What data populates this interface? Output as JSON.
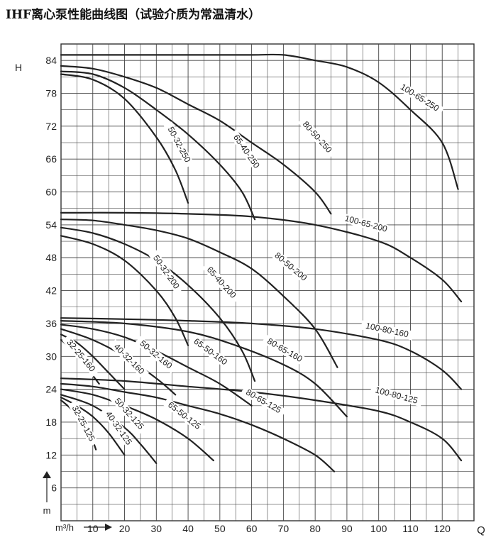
{
  "title": "IHF离心泵性能曲线图（试验介质为常温清水）",
  "chart_data": {
    "type": "line",
    "title": "IHF离心泵性能曲线图（试验介质为常温清水）",
    "xlabel": "Q",
    "ylabel": "H",
    "x_unit": "m³/h",
    "y_unit": "m",
    "xlim": [
      0,
      130
    ],
    "ylim": [
      0,
      87
    ],
    "x_ticks": [
      10,
      20,
      30,
      40,
      50,
      60,
      70,
      80,
      90,
      100,
      110,
      120
    ],
    "y_ticks": [
      6,
      12,
      18,
      24,
      30,
      36,
      42,
      48,
      54,
      60,
      66,
      72,
      78,
      84
    ],
    "grid": true,
    "series": [
      {
        "name": "100-65-250",
        "points": [
          [
            0,
            85
          ],
          [
            20,
            85
          ],
          [
            40,
            85
          ],
          [
            60,
            85
          ],
          [
            70,
            85
          ],
          [
            80,
            84
          ],
          [
            90,
            82.8
          ],
          [
            100,
            80
          ],
          [
            110,
            75
          ],
          [
            120,
            69
          ],
          [
            125,
            60.5
          ]
        ]
      },
      {
        "name": "80-50-250",
        "points": [
          [
            0,
            83
          ],
          [
            10,
            82.5
          ],
          [
            20,
            81
          ],
          [
            30,
            79
          ],
          [
            40,
            76
          ],
          [
            50,
            73
          ],
          [
            60,
            69
          ],
          [
            70,
            65
          ],
          [
            80,
            60
          ],
          [
            85,
            56
          ]
        ]
      },
      {
        "name": "65-40-250",
        "points": [
          [
            0,
            82
          ],
          [
            10,
            81.5
          ],
          [
            20,
            79
          ],
          [
            30,
            75
          ],
          [
            40,
            70.5
          ],
          [
            50,
            65
          ],
          [
            57,
            60
          ],
          [
            61,
            55
          ]
        ]
      },
      {
        "name": "50-32-250",
        "points": [
          [
            0,
            81.5
          ],
          [
            10,
            80.5
          ],
          [
            20,
            77
          ],
          [
            30,
            70
          ],
          [
            36,
            64
          ],
          [
            40,
            58
          ]
        ]
      },
      {
        "name": "100-65-200",
        "points": [
          [
            0,
            56.2
          ],
          [
            20,
            56.2
          ],
          [
            40,
            56
          ],
          [
            60,
            55.5
          ],
          [
            80,
            54
          ],
          [
            100,
            51
          ],
          [
            110,
            48
          ],
          [
            120,
            44
          ],
          [
            126,
            40
          ]
        ]
      },
      {
        "name": "80-50-200",
        "points": [
          [
            0,
            55
          ],
          [
            10,
            54.8
          ],
          [
            20,
            54
          ],
          [
            30,
            53
          ],
          [
            40,
            51.5
          ],
          [
            50,
            49
          ],
          [
            60,
            46
          ],
          [
            70,
            41
          ],
          [
            80,
            35
          ],
          [
            87,
            28
          ]
        ]
      },
      {
        "name": "65-40-200",
        "points": [
          [
            0,
            53.5
          ],
          [
            10,
            52.5
          ],
          [
            20,
            50.5
          ],
          [
            30,
            47.5
          ],
          [
            40,
            43
          ],
          [
            50,
            37
          ],
          [
            57,
            31
          ],
          [
            61,
            25.5
          ]
        ]
      },
      {
        "name": "50-32-200",
        "points": [
          [
            0,
            52
          ],
          [
            10,
            50.5
          ],
          [
            20,
            47.5
          ],
          [
            30,
            42
          ],
          [
            36,
            37
          ],
          [
            40,
            32
          ]
        ]
      },
      {
        "name": "100-80-160",
        "points": [
          [
            0,
            37
          ],
          [
            20,
            36.8
          ],
          [
            40,
            36.5
          ],
          [
            60,
            36
          ],
          [
            80,
            35
          ],
          [
            100,
            33
          ],
          [
            110,
            31
          ],
          [
            120,
            27.5
          ],
          [
            126,
            24
          ]
        ]
      },
      {
        "name": "80-65-160",
        "points": [
          [
            0,
            36.5
          ],
          [
            20,
            36
          ],
          [
            40,
            34.5
          ],
          [
            55,
            32
          ],
          [
            70,
            28.5
          ],
          [
            80,
            25
          ],
          [
            90,
            19
          ]
        ]
      },
      {
        "name": "65-50-160",
        "points": [
          [
            0,
            35.8
          ],
          [
            10,
            35
          ],
          [
            20,
            33.5
          ],
          [
            30,
            31
          ],
          [
            40,
            28
          ],
          [
            50,
            25
          ],
          [
            60,
            21
          ]
        ]
      },
      {
        "name": "50-32-160",
        "points": [
          [
            0,
            35
          ],
          [
            10,
            33
          ],
          [
            20,
            30
          ],
          [
            30,
            26
          ],
          [
            36,
            23
          ]
        ]
      },
      {
        "name": "40-32-160",
        "points": [
          [
            0,
            34
          ],
          [
            5,
            32.5
          ],
          [
            10,
            30
          ],
          [
            15,
            27
          ],
          [
            20,
            24
          ]
        ]
      },
      {
        "name": "32-25-160",
        "points": [
          [
            0,
            33
          ],
          [
            4,
            31
          ],
          [
            8,
            28
          ],
          [
            12,
            25
          ]
        ]
      },
      {
        "name": "100-80-125",
        "points": [
          [
            0,
            26
          ],
          [
            20,
            25.5
          ],
          [
            40,
            24.5
          ],
          [
            60,
            23.5
          ],
          [
            80,
            22
          ],
          [
            100,
            20
          ],
          [
            110,
            18
          ],
          [
            120,
            15
          ],
          [
            126,
            11
          ]
        ]
      },
      {
        "name": "80-65-125",
        "points": [
          [
            0,
            25
          ],
          [
            10,
            24.5
          ],
          [
            20,
            23.5
          ],
          [
            30,
            22.5
          ],
          [
            40,
            21
          ],
          [
            50,
            19.5
          ],
          [
            60,
            17.5
          ],
          [
            70,
            15
          ],
          [
            80,
            12
          ],
          [
            86,
            9
          ]
        ]
      },
      {
        "name": "65-50-125",
        "points": [
          [
            0,
            24
          ],
          [
            10,
            23
          ],
          [
            20,
            21
          ],
          [
            30,
            18.5
          ],
          [
            40,
            15
          ],
          [
            48,
            11
          ]
        ]
      },
      {
        "name": "50-32-125",
        "points": [
          [
            0,
            23
          ],
          [
            10,
            21
          ],
          [
            20,
            17
          ],
          [
            25,
            14
          ],
          [
            30,
            10.5
          ]
        ]
      },
      {
        "name": "40-32-125",
        "points": [
          [
            0,
            22.5
          ],
          [
            5,
            21
          ],
          [
            10,
            19
          ],
          [
            15,
            16
          ],
          [
            20,
            12
          ]
        ]
      },
      {
        "name": "32-25-125",
        "points": [
          [
            0,
            22
          ],
          [
            3,
            20.5
          ],
          [
            6,
            18.5
          ],
          [
            9,
            16
          ],
          [
            11,
            13
          ]
        ]
      }
    ]
  }
}
